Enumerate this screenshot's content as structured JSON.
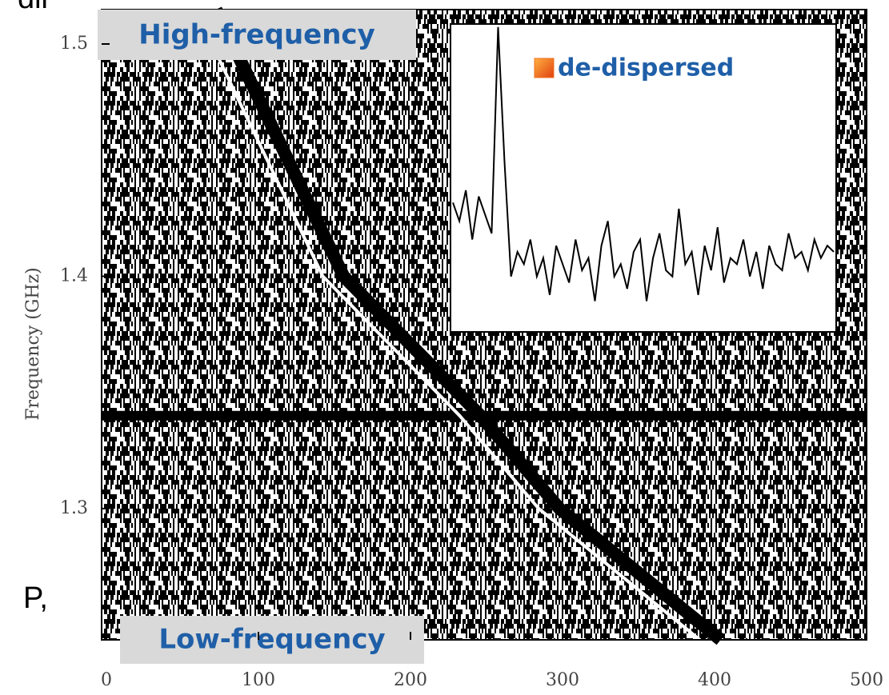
{
  "fragments": [
    "dii",
    "P,"
  ],
  "chart_data": [
    {
      "type": "waterfall",
      "y_label": "Frequency (GHz)",
      "xlim": [
        0,
        500
      ],
      "ylim": [
        1.2435,
        1.5148
      ],
      "xticks": [
        0,
        100,
        200,
        300,
        400,
        500
      ],
      "yticks": [
        1.3,
        1.4,
        1.5
      ],
      "series": [
        {
          "color": "#000000",
          "x": [
            72,
            83,
            156,
            246,
            298,
            404
          ],
          "values": [
            1.5148,
            1.5,
            1.4,
            1.34,
            1.3,
            1.2435
          ]
        }
      ],
      "rfi_line": 1.34,
      "annotations": [
        "High-frequency",
        "Low-frequency"
      ]
    },
    {
      "type": "line",
      "legend": "de-dispersed",
      "legend_color": "#f07020",
      "color": "#000000",
      "ylim": [
        0,
        1
      ],
      "values": [
        0.42,
        0.36,
        0.46,
        0.3,
        0.44,
        0.38,
        0.32,
        0.99,
        0.55,
        0.18,
        0.26,
        0.22,
        0.3,
        0.18,
        0.24,
        0.12,
        0.28,
        0.22,
        0.16,
        0.3,
        0.2,
        0.24,
        0.1,
        0.28,
        0.36,
        0.18,
        0.22,
        0.14,
        0.26,
        0.3,
        0.1,
        0.24,
        0.32,
        0.2,
        0.18,
        0.4,
        0.22,
        0.26,
        0.12,
        0.28,
        0.2,
        0.34,
        0.16,
        0.24,
        0.22,
        0.3,
        0.18,
        0.26,
        0.14,
        0.28,
        0.22,
        0.2,
        0.32,
        0.24,
        0.26,
        0.2,
        0.3,
        0.24,
        0.28,
        0.26
      ]
    }
  ]
}
